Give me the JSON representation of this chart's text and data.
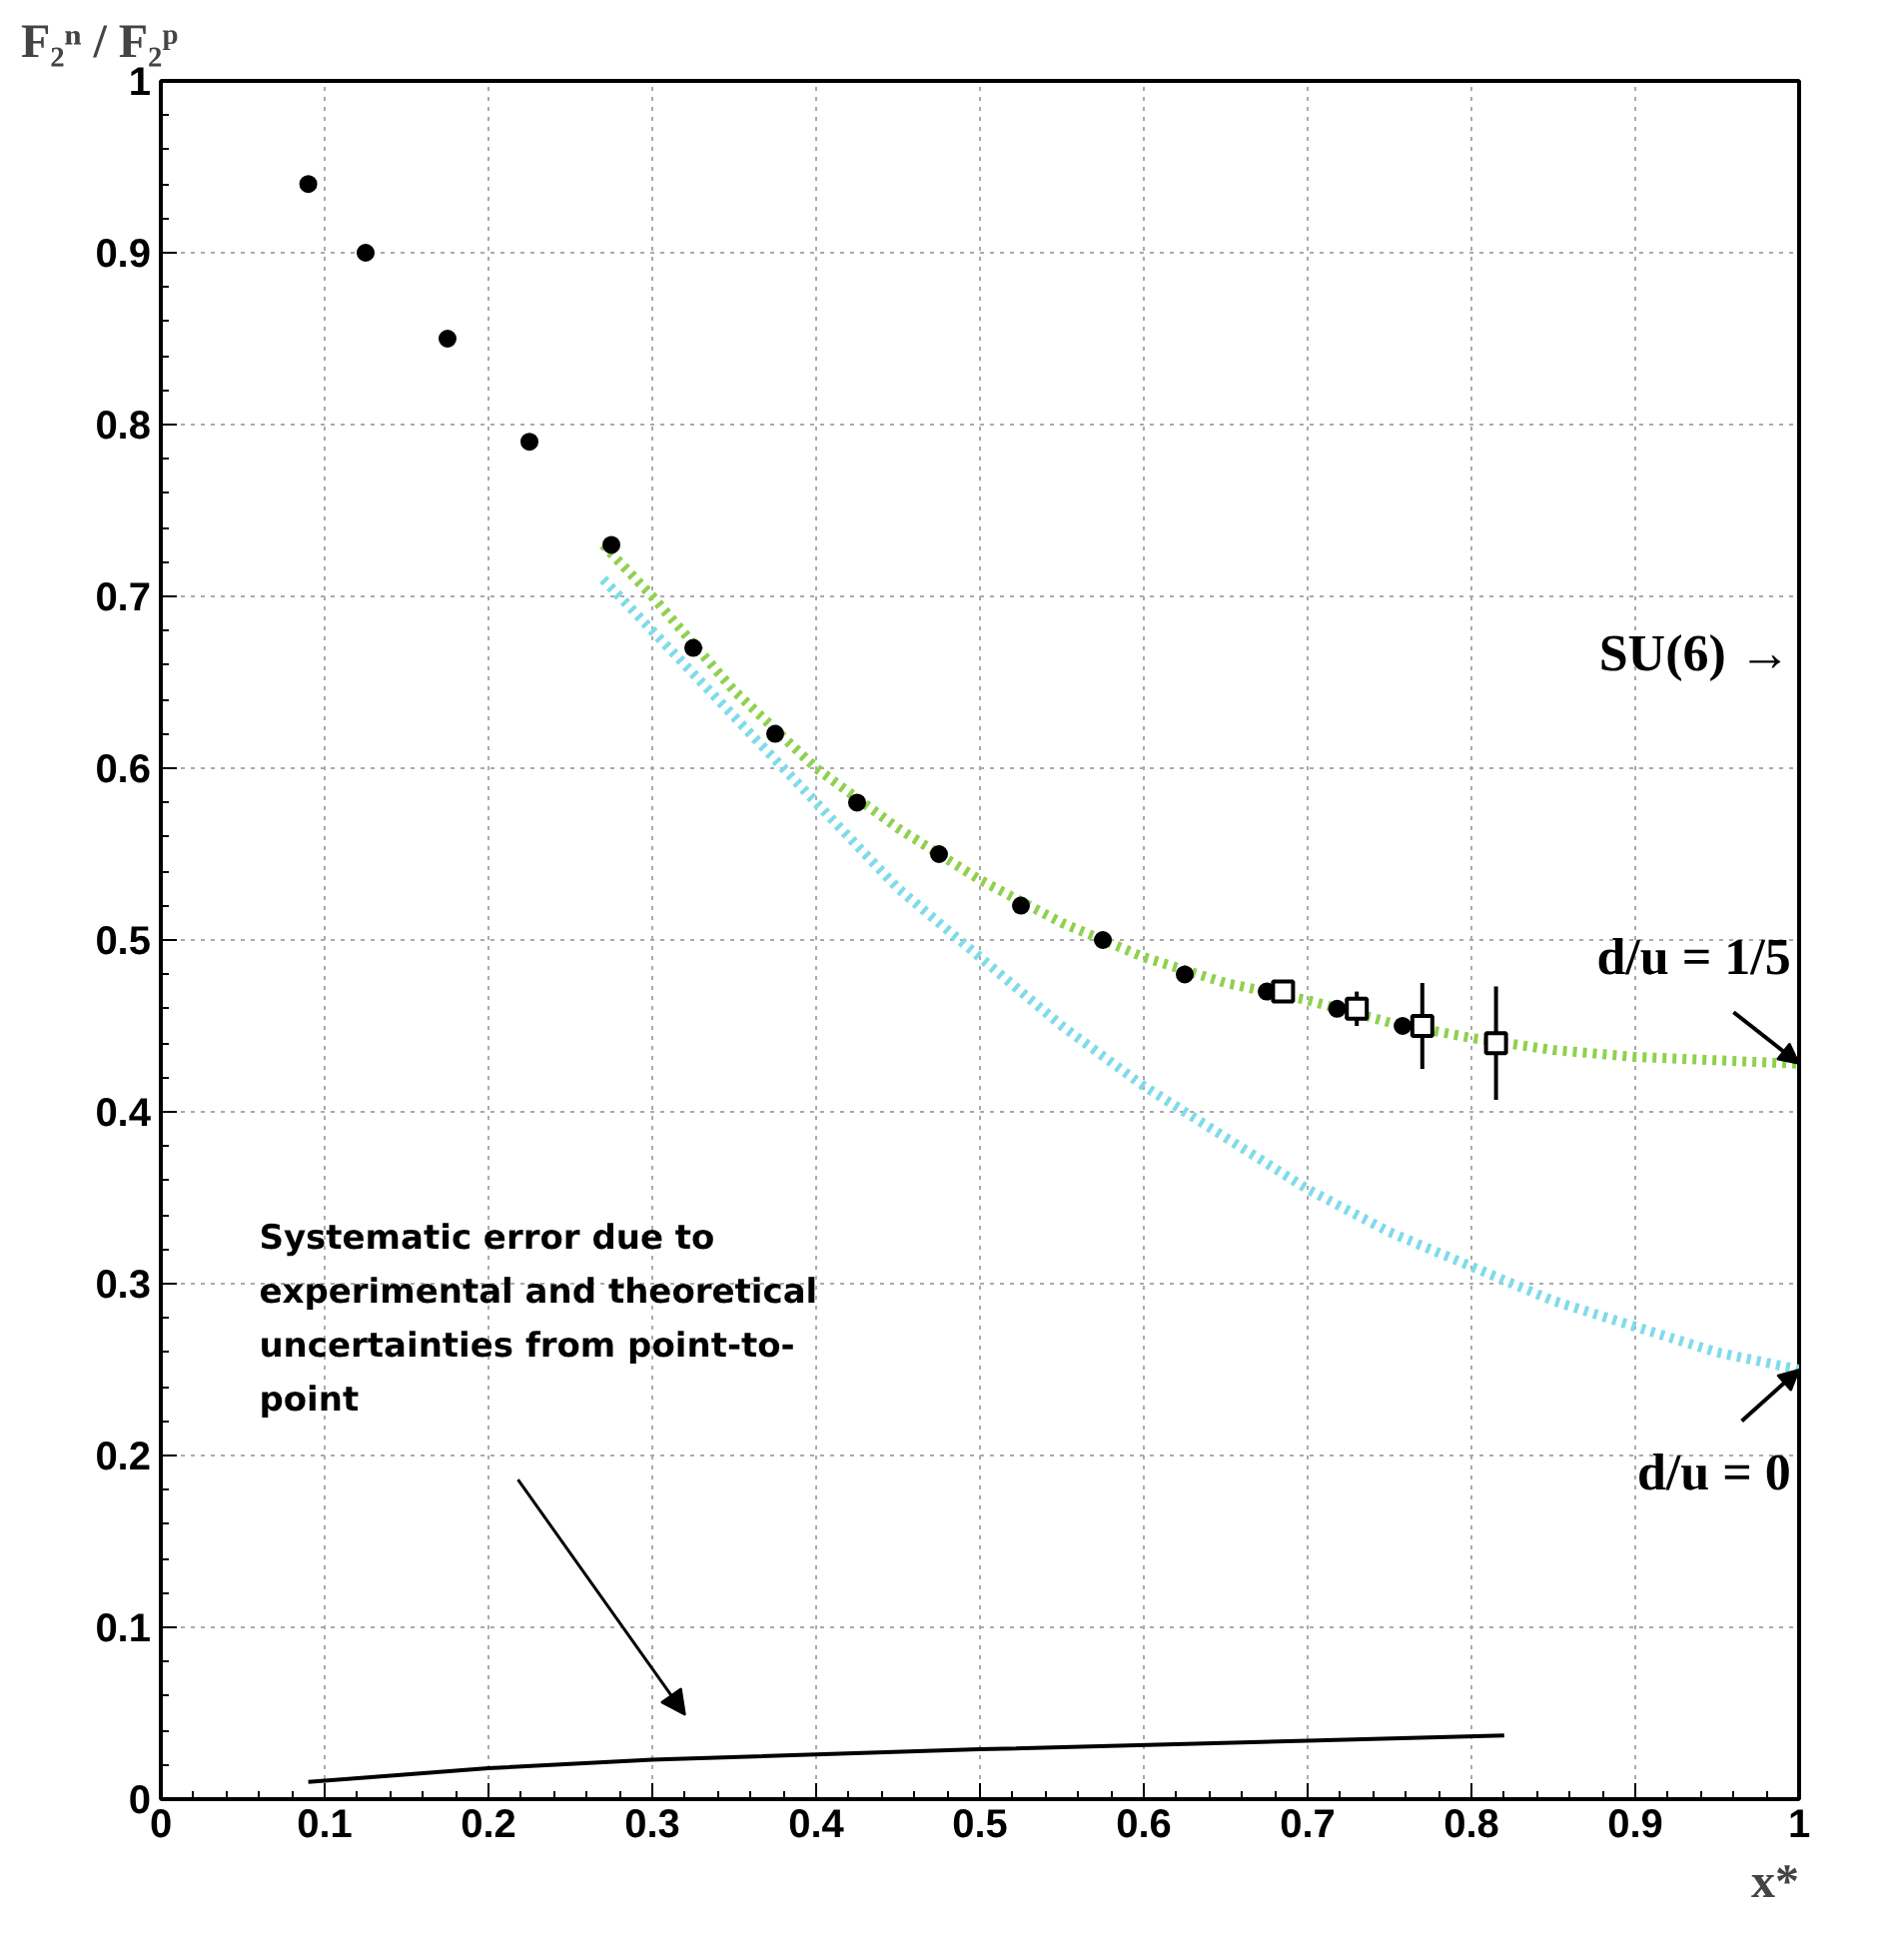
{
  "chart_data": {
    "type": "scatter",
    "xlabel": "x*",
    "ylabel": "F₂ⁿ / F₂ᵖ",
    "xlim": [
      0,
      1
    ],
    "ylim": [
      0,
      1
    ],
    "xticks": [
      0,
      0.1,
      0.2,
      0.3,
      0.4,
      0.5,
      0.6,
      0.7,
      0.8,
      0.9,
      1
    ],
    "yticks": [
      0,
      0.1,
      0.2,
      0.3,
      0.4,
      0.5,
      0.6,
      0.7,
      0.8,
      0.9,
      1
    ],
    "grid": true,
    "series": [
      {
        "type": "line",
        "color": "#8fd14f",
        "line_style": "dotted",
        "marker": "none",
        "x": [
          0.27,
          0.3,
          0.35,
          0.4,
          0.45,
          0.5,
          0.55,
          0.6,
          0.65,
          0.7,
          0.75,
          0.8,
          0.85,
          0.9,
          0.95,
          1.0
        ],
        "values": [
          0.73,
          0.7,
          0.645,
          0.6,
          0.565,
          0.535,
          0.51,
          0.49,
          0.475,
          0.465,
          0.452,
          0.443,
          0.436,
          0.432,
          0.43,
          0.428
        ]
      },
      {
        "type": "line",
        "color": "#7fdbea",
        "line_style": "dotted",
        "marker": "none",
        "x": [
          0.27,
          0.3,
          0.35,
          0.4,
          0.45,
          0.5,
          0.55,
          0.6,
          0.65,
          0.7,
          0.75,
          0.8,
          0.85,
          0.9,
          0.95,
          1.0
        ],
        "values": [
          0.71,
          0.68,
          0.63,
          0.58,
          0.53,
          0.49,
          0.45,
          0.415,
          0.385,
          0.355,
          0.33,
          0.31,
          0.29,
          0.275,
          0.26,
          0.25
        ]
      },
      {
        "type": "line",
        "color": "#000000",
        "line_style": "solid",
        "marker": "none",
        "x": [
          0.09,
          0.2,
          0.3,
          0.5,
          0.7,
          0.82
        ],
        "values": [
          0.01,
          0.018,
          0.023,
          0.029,
          0.034,
          0.037
        ]
      },
      {
        "color": "#000000",
        "marker": "circle",
        "x": [
          0.09,
          0.125,
          0.175,
          0.225,
          0.275,
          0.325,
          0.375,
          0.425,
          0.475,
          0.525,
          0.575,
          0.625,
          0.675,
          0.718,
          0.758
        ],
        "values": [
          0.94,
          0.9,
          0.85,
          0.79,
          0.73,
          0.67,
          0.62,
          0.58,
          0.55,
          0.52,
          0.5,
          0.48,
          0.47,
          0.46,
          0.45
        ]
      },
      {
        "color": "#000000",
        "marker": "square",
        "x": [
          0.685,
          0.73,
          0.77,
          0.815
        ],
        "values": [
          0.47,
          0.46,
          0.45,
          0.44
        ],
        "errors": [
          0.005,
          0.01,
          0.025,
          0.033
        ]
      }
    ],
    "annotations": [
      "SU(6) →",
      {
        "text": "d/u = 1/5",
        "x": 1,
        "y": 0.428
      },
      {
        "text": "d/u = 0",
        "x": 1,
        "y": 0.25
      },
      "Systematic error due to\nexperimental and theoretical\nuncertainties from point-to-\npoint"
    ]
  }
}
